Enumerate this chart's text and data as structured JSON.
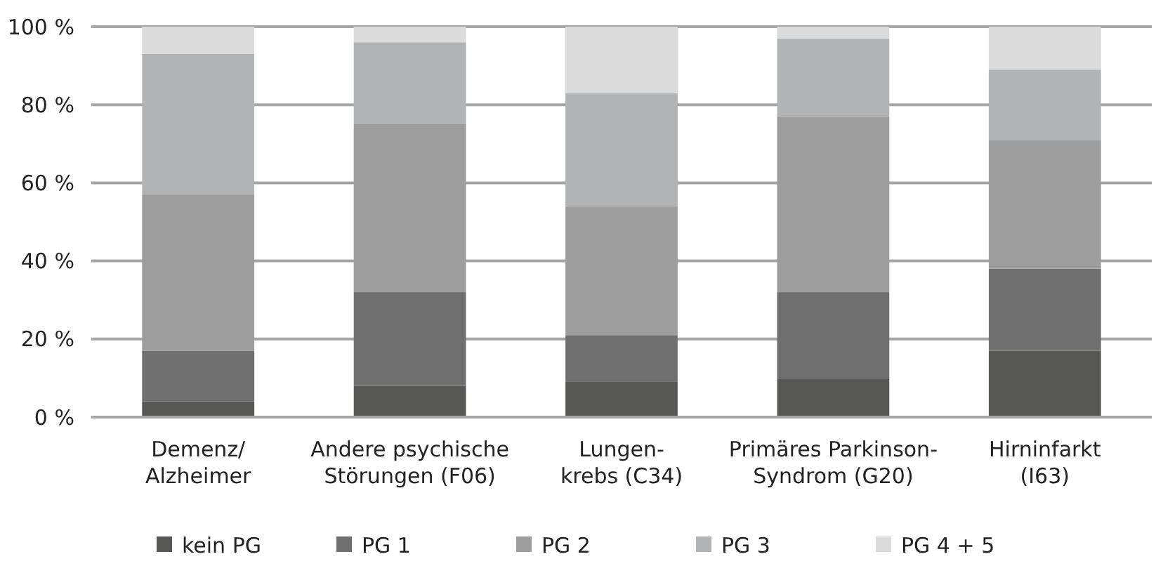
{
  "chart_data": {
    "type": "bar",
    "stacked": true,
    "categories": [
      "Demenz/\nAlzheimer",
      "Andere psychische\nStörungen (F06)",
      "Lungen-\nkrebs (C34)",
      "Primäres Parkinson-\nSyndrom (G20)",
      "Hirninfarkt\n(I63)"
    ],
    "series": [
      {
        "name": "kein PG",
        "color": "#575755",
        "values": [
          4,
          8,
          9,
          10,
          17
        ]
      },
      {
        "name": "PG 1",
        "color": "#6f6f6f",
        "values": [
          13,
          24,
          12,
          22,
          21
        ]
      },
      {
        "name": "PG 2",
        "color": "#9d9d9d",
        "values": [
          40,
          43,
          33,
          45,
          33
        ]
      },
      {
        "name": "PG 3",
        "color": "#b2b3b5",
        "values": [
          36,
          21,
          29,
          20,
          18
        ]
      },
      {
        "name": "PG 4 + 5",
        "color": "#dadbda",
        "values": [
          7,
          4,
          17,
          3,
          11
        ]
      }
    ],
    "ylim": [
      0,
      100
    ],
    "yticks": [
      {
        "value": 0,
        "label": "0 %"
      },
      {
        "value": 20,
        "label": "20 %"
      },
      {
        "value": 40,
        "label": "40 %"
      },
      {
        "value": 60,
        "label": "60 %"
      },
      {
        "value": 80,
        "label": "80 %"
      },
      {
        "value": 100,
        "label": "100 %"
      }
    ],
    "grid": "y",
    "legend": "bottom"
  }
}
